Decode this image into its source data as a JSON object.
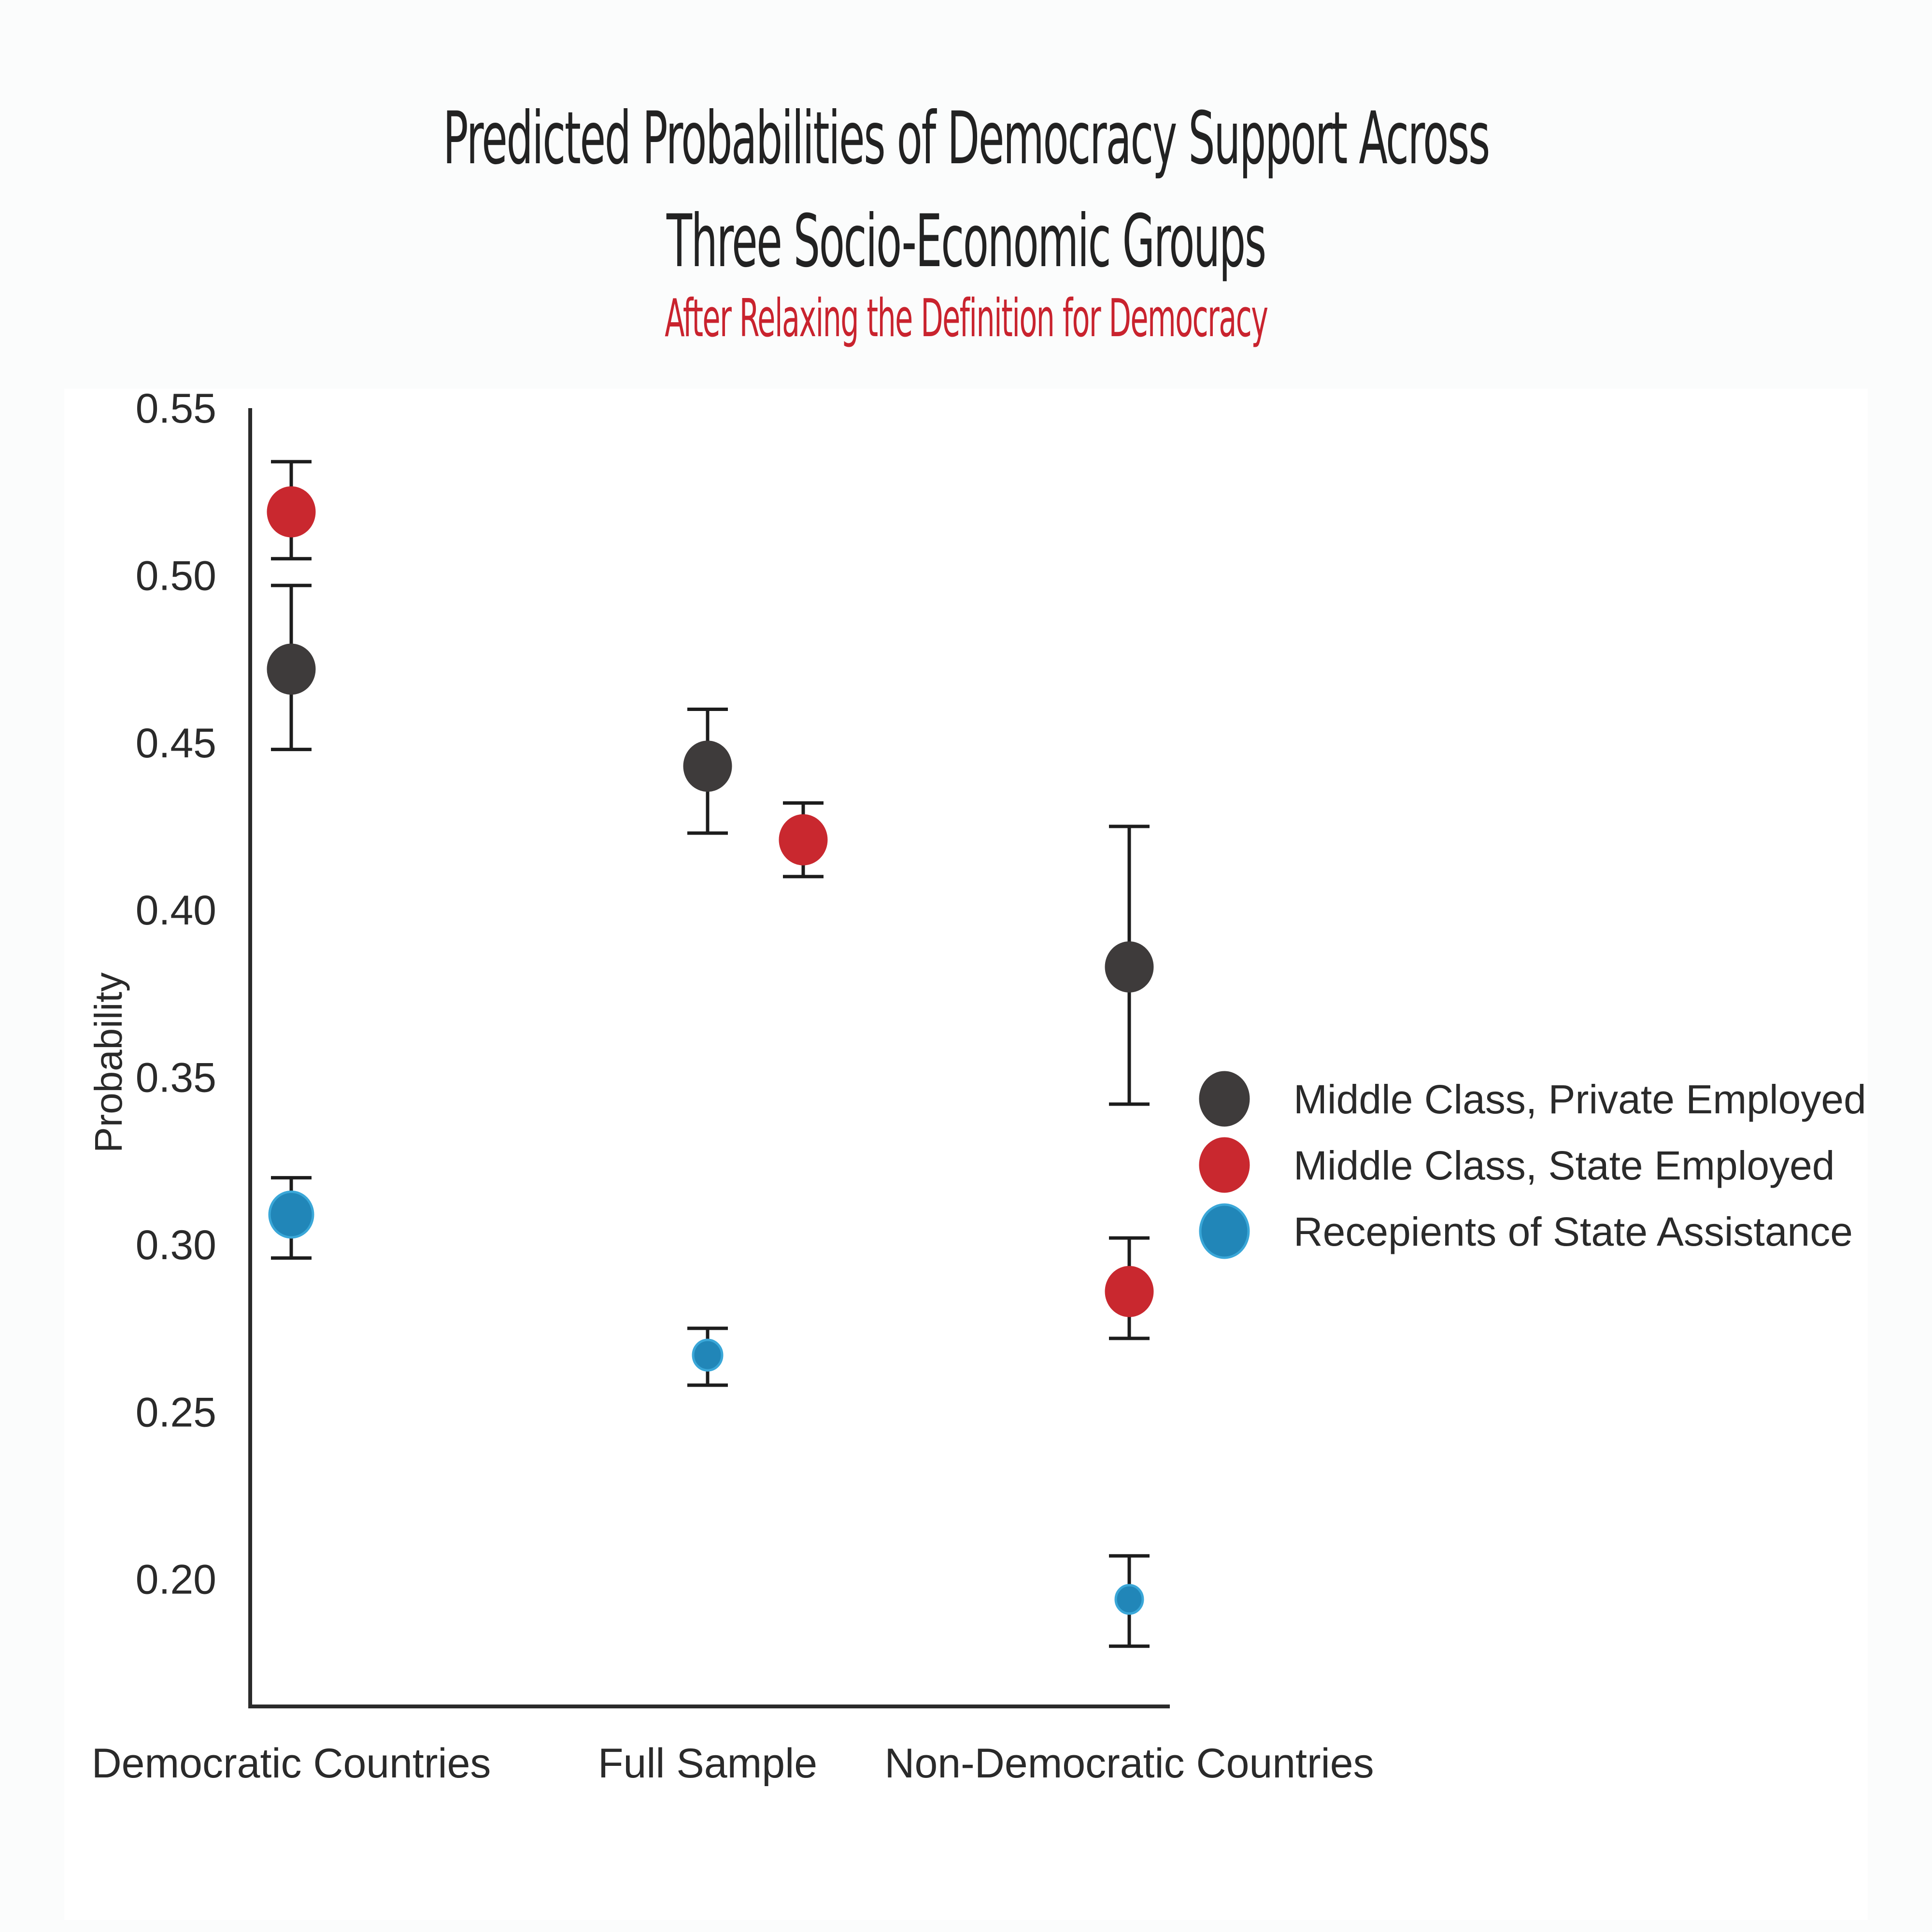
{
  "chart_data": {
    "type": "scatter",
    "title_lines": [
      "Predicted Probabilities of Democracy Support Across",
      "Three Socio-Economic Groups"
    ],
    "subtitle": "After Relaxing the Definition for Democracy",
    "xlabel": "",
    "ylabel": "Probability",
    "categories": [
      "Democratic Countries",
      "Full Sample",
      "Non-Democratic Countries"
    ],
    "y_ticks": [
      "0.20",
      "0.25",
      "0.30",
      "0.35",
      "0.40",
      "0.45",
      "0.50",
      "0.55"
    ],
    "ylim": [
      0.162,
      0.55
    ],
    "grid": false,
    "legend_position": "right",
    "series": [
      {
        "name": "Middle Class, Private Employed",
        "color": "#3e3b3b",
        "points": [
          {
            "category": "Democratic Countries",
            "value": 0.472,
            "lower": 0.448,
            "upper": 0.497
          },
          {
            "category": "Full Sample",
            "value": 0.443,
            "lower": 0.423,
            "upper": 0.46
          },
          {
            "category": "Non-Democratic Countries",
            "value": 0.383,
            "lower": 0.342,
            "upper": 0.425
          }
        ]
      },
      {
        "name": "Middle Class, State Employed",
        "color": "#c9282f",
        "points": [
          {
            "category": "Democratic Countries",
            "value": 0.519,
            "lower": 0.505,
            "upper": 0.534
          },
          {
            "category": "Full Sample",
            "value": 0.421,
            "lower": 0.41,
            "upper": 0.432
          },
          {
            "category": "Non-Democratic Countries",
            "value": 0.286,
            "lower": 0.272,
            "upper": 0.302
          }
        ]
      },
      {
        "name": "Recepients of State Assistance",
        "color": "#2186b8",
        "points": [
          {
            "category": "Democratic Countries",
            "value": 0.309,
            "lower": 0.296,
            "upper": 0.32
          },
          {
            "category": "Full Sample",
            "value": 0.267,
            "lower": 0.258,
            "upper": 0.275
          },
          {
            "category": "Non-Democratic Countries",
            "value": 0.194,
            "lower": 0.18,
            "upper": 0.207
          }
        ]
      }
    ]
  }
}
